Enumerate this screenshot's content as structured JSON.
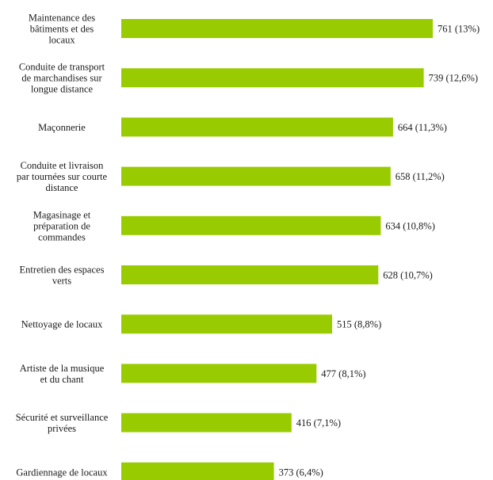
{
  "chart_data": {
    "type": "bar",
    "orientation": "horizontal",
    "title": "",
    "xlabel": "",
    "ylabel": "",
    "grid": false,
    "bar_color": "#99cc00",
    "xlim": [
      0,
      880
    ],
    "categories": [
      "Maintenance des bâtiments et des locaux",
      "Conduite de transport de marchandises sur longue distance",
      "Maçonnerie",
      "Conduite et livraison par tournées sur courte distance",
      "Magasinage et préparation de commandes",
      "Entretien des espaces verts",
      "Nettoyage de locaux",
      "Artiste de la musique et du chant",
      "Sécurité et surveillance privées",
      "Gardiennage de locaux"
    ],
    "category_lines": [
      [
        "Maintenance des",
        "bâtiments et des",
        "locaux"
      ],
      [
        "Conduite de transport",
        "de marchandises sur",
        "longue distance"
      ],
      [
        "Maçonnerie"
      ],
      [
        "Conduite et livraison",
        "par tournées sur courte",
        "distance"
      ],
      [
        "Magasinage et",
        "préparation de",
        "commandes"
      ],
      [
        "Entretien des espaces",
        "verts"
      ],
      [
        "Nettoyage de locaux"
      ],
      [
        "Artiste de la musique",
        "et du chant"
      ],
      [
        "Sécurité et surveillance",
        "privées"
      ],
      [
        "Gardiennage de locaux"
      ]
    ],
    "values": [
      761,
      739,
      664,
      658,
      634,
      628,
      515,
      477,
      416,
      373
    ],
    "value_labels": [
      "761 (13%)",
      "739 (12,6%)",
      "664 (11,3%)",
      "658 (11,2%)",
      "634 (10,8%)",
      "628 (10,7%)",
      "515 (8,8%)",
      "477 (8,1%)",
      "416 (7,1%)",
      "373 (6,4%)"
    ]
  }
}
